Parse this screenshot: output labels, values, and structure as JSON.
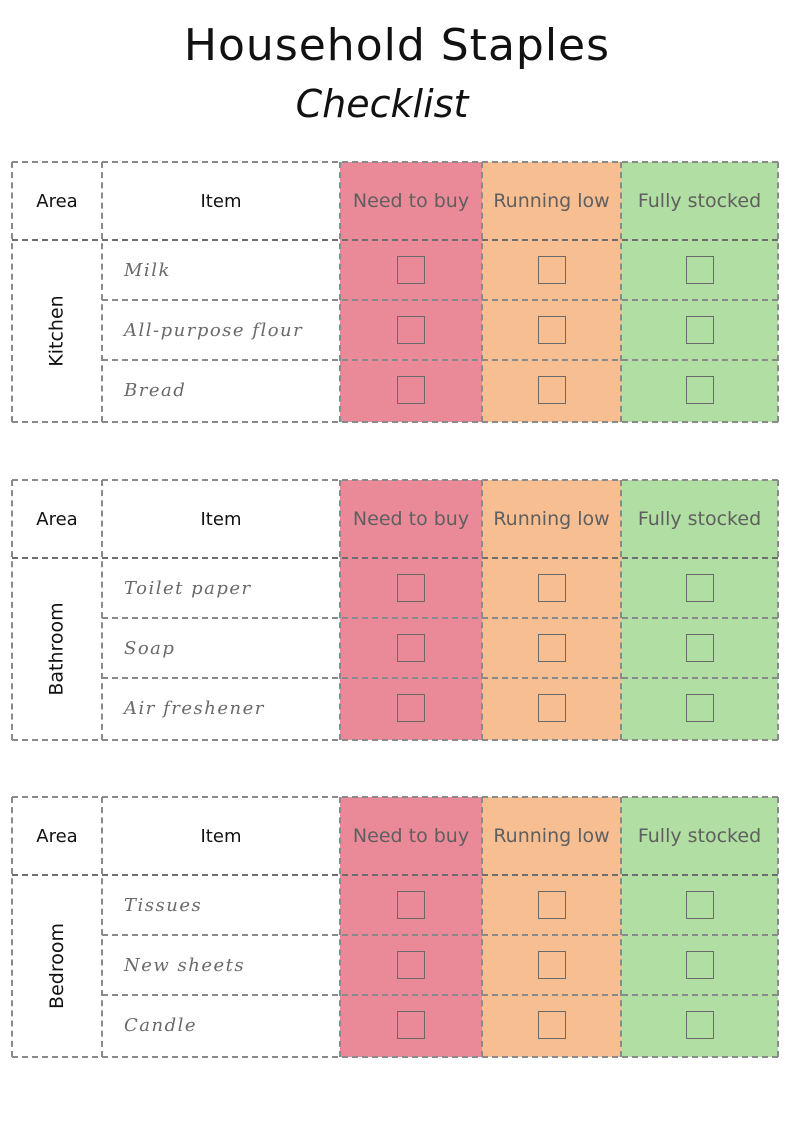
{
  "header": {
    "title": "Household Staples",
    "subtitle": "Checklist"
  },
  "columns": {
    "area": "Area",
    "item": "Item",
    "need": "Need to buy",
    "low": "Running low",
    "full": "Fully stocked"
  },
  "colors": {
    "need": "#ea8a99",
    "low": "#f7be92",
    "full": "#b1dea2",
    "border": "#8a8a8a"
  },
  "sections": [
    {
      "area": "Kitchen",
      "items": [
        {
          "name": "Milk",
          "need": false,
          "low": false,
          "full": false
        },
        {
          "name": "All-purpose flour",
          "need": false,
          "low": false,
          "full": false
        },
        {
          "name": "Bread",
          "need": false,
          "low": false,
          "full": false
        }
      ]
    },
    {
      "area": "Bathroom",
      "items": [
        {
          "name": "Toilet paper",
          "need": false,
          "low": false,
          "full": false
        },
        {
          "name": "Soap",
          "need": false,
          "low": false,
          "full": false
        },
        {
          "name": "Air freshener",
          "need": false,
          "low": false,
          "full": false
        }
      ]
    },
    {
      "area": "Bedroom",
      "items": [
        {
          "name": "Tissues",
          "need": false,
          "low": false,
          "full": false
        },
        {
          "name": "New sheets",
          "need": false,
          "low": false,
          "full": false
        },
        {
          "name": "Candle",
          "need": false,
          "low": false,
          "full": false
        }
      ]
    }
  ]
}
